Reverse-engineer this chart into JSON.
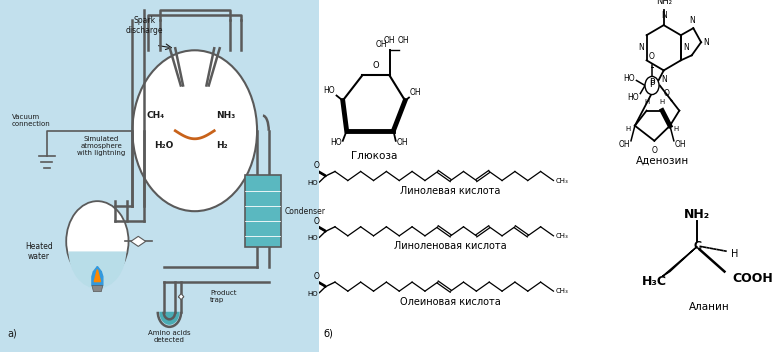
{
  "fig_width": 7.79,
  "fig_height": 3.52,
  "dpi": 100,
  "background_color": "#ffffff",
  "panel_a_bg": "#c2e0ed",
  "labels": {
    "panel_a": "а)",
    "panel_b": "б)",
    "spark_discharge": "Spark\ndischarge",
    "vacuum": "Vacuum\nconnection",
    "simulated": "Simulated\natmosphere\nwith lightning",
    "ch4": "CH₄",
    "nh3": "NH₃",
    "h2o": "H₂O",
    "h2": "H₂",
    "condenser": "Condenser",
    "heated_water": "Heated\nwater",
    "amino_acids": "Amino acids\ndetected",
    "product_trap": "Product\ntrap",
    "glucose": "Глюкоза",
    "linoleic": "Линолевая кислота",
    "linolenic": "Линоленовая кислота",
    "oleic": "Олеиновая кислота",
    "adenosine": "Аденозин",
    "alanine": "Аланин"
  },
  "colors": {
    "outline": "#5a5a5a",
    "spark_orange": "#c8621a",
    "teal": "#5ab8c0",
    "teal_dark": "#3a9098",
    "text": "#1a1a1a",
    "black": "#000000",
    "flask_water": "#b8dde8",
    "tube_fill": "#4aacb4"
  }
}
